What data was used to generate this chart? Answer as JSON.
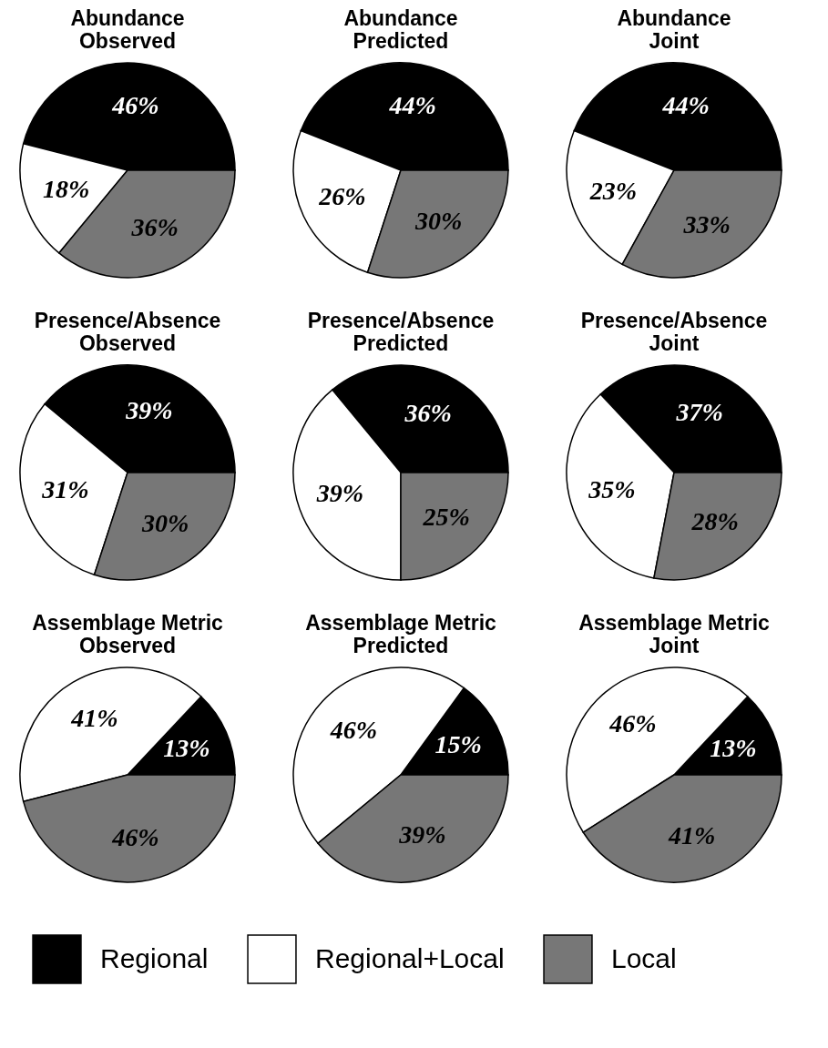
{
  "chart_data": [
    {
      "type": "pie",
      "title": "Abundance",
      "subtitle": "Observed",
      "categories": [
        "Regional",
        "Regional+Local",
        "Local"
      ],
      "values": [
        46,
        18,
        36
      ],
      "colors": [
        "#000000",
        "#ffffff",
        "#777777"
      ],
      "value_labels": [
        "46%",
        "18%",
        "36%"
      ],
      "legend": "bottom"
    },
    {
      "type": "pie",
      "title": "Abundance",
      "subtitle": "Predicted",
      "categories": [
        null,
        null,
        null
      ],
      "values": [
        44,
        26,
        30
      ],
      "colors": [
        "#000000",
        "#ffffff",
        "#777777"
      ],
      "value_labels": [
        "44%",
        "26%",
        "30%"
      ]
    },
    {
      "type": "pie",
      "title": "Abundance",
      "subtitle": "Joint",
      "categories": [
        null,
        null,
        null
      ],
      "values": [
        44,
        23,
        33
      ],
      "colors": [
        "#000000",
        "#ffffff",
        "#777777"
      ],
      "value_labels": [
        "44%",
        "23%",
        "33%"
      ]
    },
    {
      "type": "pie",
      "title": "Presence/Absence",
      "subtitle": "Observed",
      "categories": [
        null,
        null,
        null
      ],
      "values": [
        39,
        31,
        30
      ],
      "colors": [
        "#000000",
        "#ffffff",
        "#777777"
      ],
      "value_labels": [
        "39%",
        "31%",
        "30%"
      ]
    },
    {
      "type": "pie",
      "title": "Presence/Absence",
      "subtitle": "Predicted",
      "categories": [
        null,
        null,
        null
      ],
      "values": [
        36,
        39,
        25
      ],
      "colors": [
        "#000000",
        "#ffffff",
        "#777777"
      ],
      "value_labels": [
        "36%",
        "39%",
        "25%"
      ]
    },
    {
      "type": "pie",
      "title": "Presence/Absence",
      "subtitle": "Joint",
      "categories": [
        null,
        null,
        null
      ],
      "values": [
        37,
        35,
        28
      ],
      "colors": [
        "#000000",
        "#ffffff",
        "#777777"
      ],
      "value_labels": [
        "37%",
        "35%",
        "28%"
      ]
    },
    {
      "type": "pie",
      "title": "Assemblage Metric",
      "subtitle": "Observed",
      "categories": [
        null,
        null,
        null
      ],
      "values": [
        13,
        41,
        46
      ],
      "colors": [
        "#000000",
        "#ffffff",
        "#777777"
      ],
      "value_labels": [
        "13%",
        "41%",
        "46%"
      ]
    },
    {
      "type": "pie",
      "title": "Assemblage Metric",
      "subtitle": "Predicted",
      "categories": [
        null,
        null,
        null
      ],
      "values": [
        15,
        46,
        39
      ],
      "colors": [
        "#000000",
        "#ffffff",
        "#777777"
      ],
      "value_labels": [
        "15%",
        "46%",
        "39%"
      ]
    },
    {
      "type": "pie",
      "title": "Assemblage Metric",
      "subtitle": "Joint",
      "categories": [
        null,
        null,
        null
      ],
      "values": [
        13,
        46,
        41
      ],
      "colors": [
        "#000000",
        "#ffffff",
        "#777777"
      ],
      "value_labels": [
        "13%",
        "46%",
        "41%"
      ]
    }
  ]
}
